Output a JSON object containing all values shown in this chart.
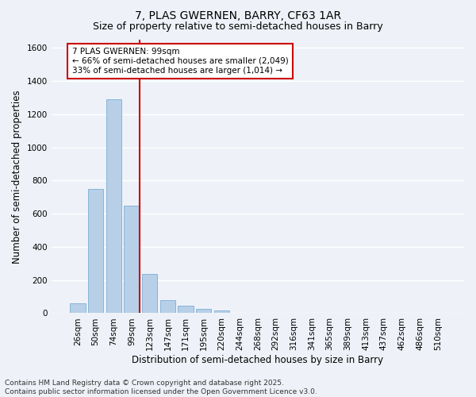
{
  "title": "7, PLAS GWERNEN, BARRY, CF63 1AR",
  "subtitle": "Size of property relative to semi-detached houses in Barry",
  "xlabel": "Distribution of semi-detached houses by size in Barry",
  "ylabel": "Number of semi-detached properties",
  "categories": [
    "26sqm",
    "50sqm",
    "74sqm",
    "99sqm",
    "123sqm",
    "147sqm",
    "171sqm",
    "195sqm",
    "220sqm",
    "244sqm",
    "268sqm",
    "292sqm",
    "316sqm",
    "341sqm",
    "365sqm",
    "389sqm",
    "413sqm",
    "437sqm",
    "462sqm",
    "486sqm",
    "510sqm"
  ],
  "values": [
    60,
    750,
    1290,
    650,
    235,
    80,
    45,
    25,
    15,
    0,
    0,
    0,
    0,
    0,
    0,
    0,
    0,
    0,
    0,
    0,
    0
  ],
  "bar_color": "#b8cfe8",
  "bar_edge_color": "#7aadd4",
  "highlight_bar_index": 3,
  "vline_color": "#cc0000",
  "ylim": [
    0,
    1650
  ],
  "yticks": [
    0,
    200,
    400,
    600,
    800,
    1000,
    1200,
    1400,
    1600
  ],
  "annotation_text": "7 PLAS GWERNEN: 99sqm\n← 66% of semi-detached houses are smaller (2,049)\n33% of semi-detached houses are larger (1,014) →",
  "annotation_box_color": "#ffffff",
  "annotation_box_edge_color": "#cc0000",
  "footer_text": "Contains HM Land Registry data © Crown copyright and database right 2025.\nContains public sector information licensed under the Open Government Licence v3.0.",
  "background_color": "#eef2f8",
  "grid_color": "#ffffff",
  "title_fontsize": 10,
  "subtitle_fontsize": 9,
  "axis_label_fontsize": 8.5,
  "tick_fontsize": 7.5,
  "annotation_fontsize": 7.5,
  "footer_fontsize": 6.5
}
